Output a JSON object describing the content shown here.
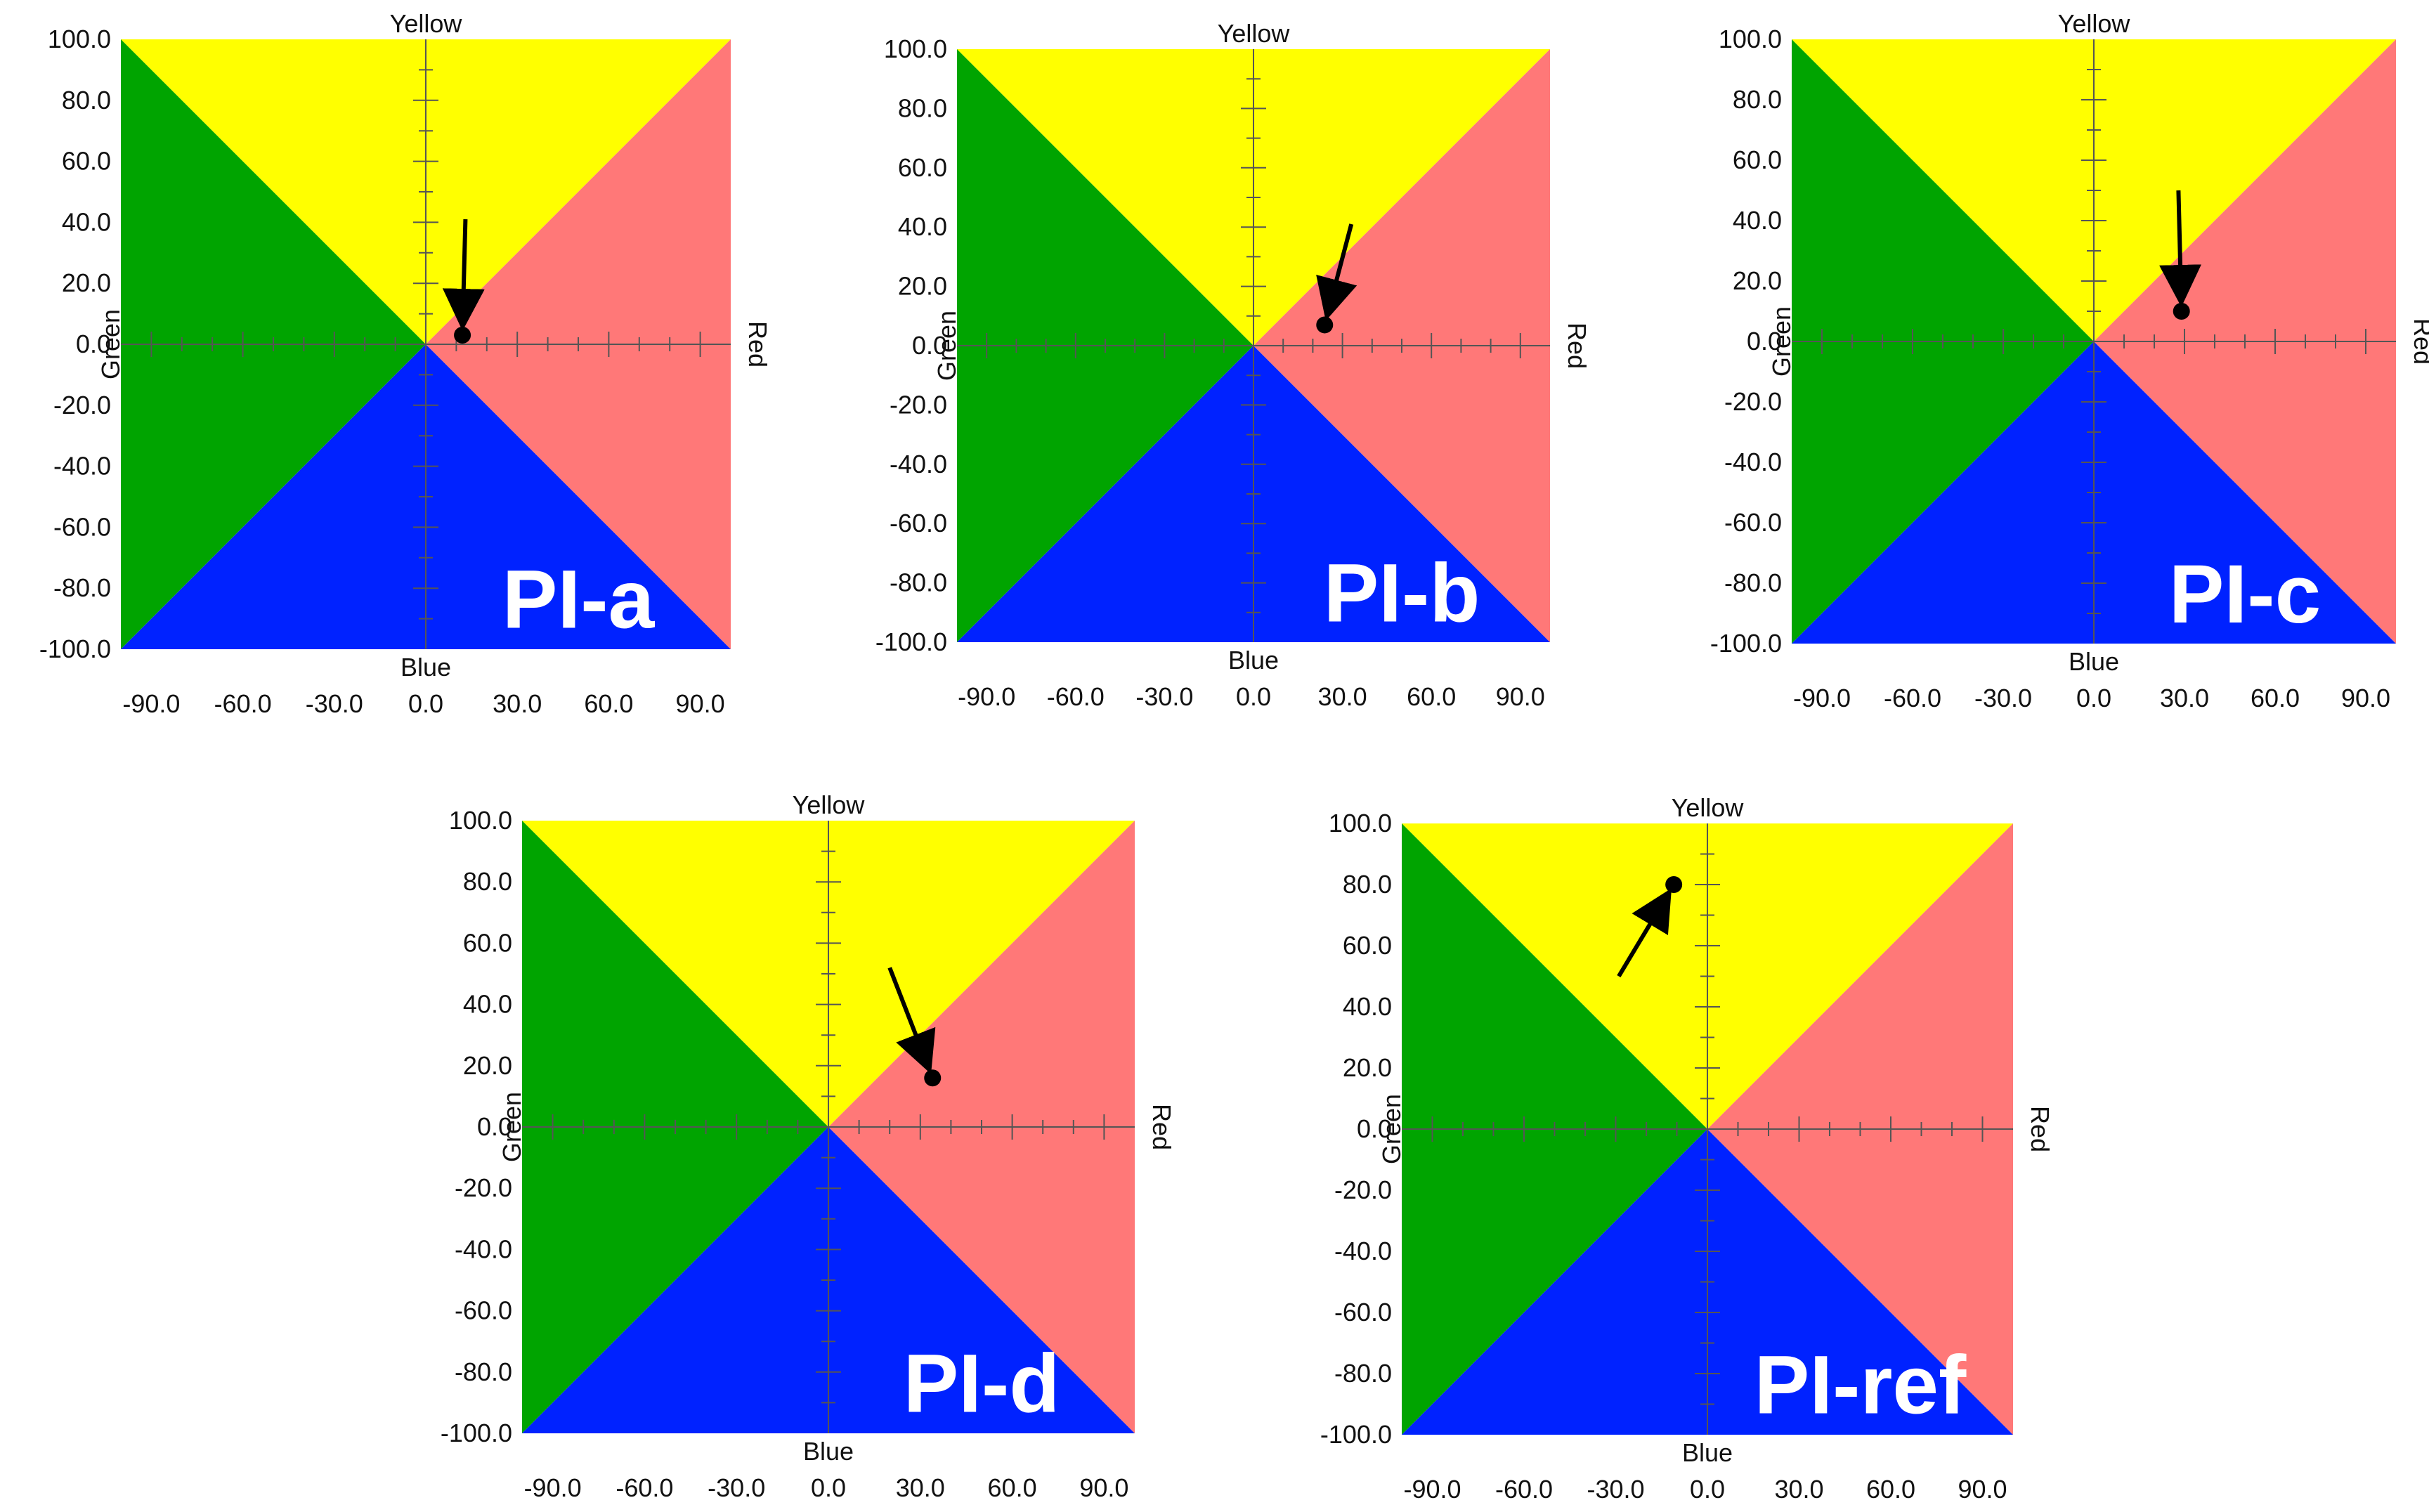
{
  "colors": {
    "yellow": "#ffff00",
    "green": "#00a400",
    "blue": "#0022ff",
    "red": "#ff7878",
    "marker": "#000000",
    "axis": "#555555"
  },
  "chart_data": [
    {
      "type": "scatter",
      "title": "PI-a",
      "label": "PI-a",
      "direction_labels": {
        "top": "Yellow",
        "bottom": "Blue",
        "left": "Green",
        "right": "Red"
      },
      "x_ticks": [
        "-90.0",
        "-60.0",
        "-30.0",
        "0.0",
        "30.0",
        "60.0",
        "90.0"
      ],
      "y_ticks": [
        "100.0",
        "80.0",
        "60.0",
        "40.0",
        "20.0",
        "0.0",
        "-20.0",
        "-40.0",
        "-60.0",
        "-80.0",
        "-100.0"
      ],
      "xlim": [
        -100,
        100
      ],
      "ylim": [
        -100,
        100
      ],
      "point": {
        "x": 12,
        "y": 3
      },
      "arrow_from": {
        "x": 13,
        "y": 41
      }
    },
    {
      "type": "scatter",
      "title": "PI-b",
      "label": "PI-b",
      "direction_labels": {
        "top": "Yellow",
        "bottom": "Blue",
        "left": "Green",
        "right": "Red"
      },
      "x_ticks": [
        "-90.0",
        "-60.0",
        "-30.0",
        "0.0",
        "30.0",
        "60.0",
        "90.0"
      ],
      "y_ticks": [
        "100.0",
        "80.0",
        "60.0",
        "40.0",
        "20.0",
        "0.0",
        "-20.0",
        "-40.0",
        "-60.0",
        "-80.0",
        "-100.0"
      ],
      "xlim": [
        -100,
        100
      ],
      "ylim": [
        -100,
        100
      ],
      "point": {
        "x": 24,
        "y": 7
      },
      "arrow_from": {
        "x": 33,
        "y": 41
      }
    },
    {
      "type": "scatter",
      "title": "PI-c",
      "label": "PI-c",
      "direction_labels": {
        "top": "Yellow",
        "bottom": "Blue",
        "left": "Green",
        "right": "Red"
      },
      "x_ticks": [
        "-90.0",
        "-60.0",
        "-30.0",
        "0.0",
        "30.0",
        "60.0",
        "90.0"
      ],
      "y_ticks": [
        "100.0",
        "80.0",
        "60.0",
        "40.0",
        "20.0",
        "0.0",
        "-20.0",
        "-40.0",
        "-60.0",
        "-80.0",
        "-100.0"
      ],
      "xlim": [
        -100,
        100
      ],
      "ylim": [
        -100,
        100
      ],
      "point": {
        "x": 29,
        "y": 10
      },
      "arrow_from": {
        "x": 28,
        "y": 50
      }
    },
    {
      "type": "scatter",
      "title": "PI-d",
      "label": "PI-d",
      "direction_labels": {
        "top": "Yellow",
        "bottom": "Blue",
        "left": "Green",
        "right": "Red"
      },
      "x_ticks": [
        "-90.0",
        "-60.0",
        "-30.0",
        "0.0",
        "30.0",
        "60.0",
        "90.0"
      ],
      "y_ticks": [
        "100.0",
        "80.0",
        "60.0",
        "40.0",
        "20.0",
        "0.0",
        "-20.0",
        "-40.0",
        "-60.0",
        "-80.0",
        "-100.0"
      ],
      "xlim": [
        -100,
        100
      ],
      "ylim": [
        -100,
        100
      ],
      "point": {
        "x": 34,
        "y": 16
      },
      "arrow_from": {
        "x": 20,
        "y": 52
      }
    },
    {
      "type": "scatter",
      "title": "PI-ref",
      "label": "PI-ref",
      "direction_labels": {
        "top": "Yellow",
        "bottom": "Blue",
        "left": "Green",
        "right": "Red"
      },
      "x_ticks": [
        "-90.0",
        "-60.0",
        "-30.0",
        "0.0",
        "30.0",
        "60.0",
        "90.0"
      ],
      "y_ticks": [
        "100.0",
        "80.0",
        "60.0",
        "40.0",
        "20.0",
        "0.0",
        "-20.0",
        "-40.0",
        "-60.0",
        "-80.0",
        "-100.0"
      ],
      "xlim": [
        -100,
        100
      ],
      "ylim": [
        -100,
        100
      ],
      "point": {
        "x": -11,
        "y": 80
      },
      "arrow_from": {
        "x": -29,
        "y": 50
      }
    }
  ]
}
